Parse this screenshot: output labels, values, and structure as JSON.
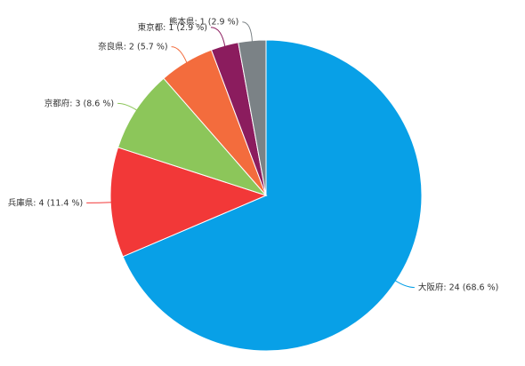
{
  "chart_data": {
    "type": "pie",
    "start_angle_deg": 0,
    "direction": "clockwise",
    "legend": "none",
    "data_labels": "outside-with-connectors",
    "slices": [
      {
        "name": "大阪府",
        "value": 24,
        "percent": "68.6 %",
        "color": "#08a0e7",
        "label": "大阪府: 24 (68.6 %)"
      },
      {
        "name": "兵庫県",
        "value": 4,
        "percent": "11.4 %",
        "color": "#f23838",
        "label": "兵庫県: 4 (11.4 %)"
      },
      {
        "name": "京都府",
        "value": 3,
        "percent": "8.6 %",
        "color": "#8cc65a",
        "label": "京都府: 3 (8.6 %)"
      },
      {
        "name": "奈良県",
        "value": 2,
        "percent": "5.7 %",
        "color": "#f36c3d",
        "label": "奈良県: 2 (5.7 %)"
      },
      {
        "name": "東京都",
        "value": 1,
        "percent": "2.9 %",
        "color": "#8b1c5e",
        "label": "東京都: 1 (2.9 %)"
      },
      {
        "name": "熊本県",
        "value": 1,
        "percent": "2.9 %",
        "color": "#7b8286",
        "label": "熊本県: 1 (2.9 %)"
      }
    ]
  }
}
